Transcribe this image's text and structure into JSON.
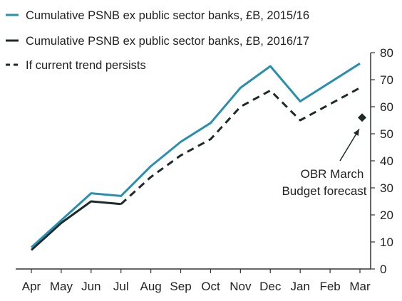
{
  "chart_data": {
    "type": "line",
    "categories": [
      "Apr",
      "May",
      "Jun",
      "Jul",
      "Aug",
      "Sep",
      "Oct",
      "Nov",
      "Dec",
      "Jan",
      "Feb",
      "Mar"
    ],
    "series": [
      {
        "name": "Cumulative PSNB ex public sector banks, £B, 2015/16",
        "style": "solid",
        "color": "#2a8eae",
        "values": [
          8,
          18,
          28,
          27,
          38,
          47,
          54,
          67,
          75,
          62,
          69,
          76
        ]
      },
      {
        "name": "Cumulative PSNB ex public sector banks, £B, 2016/17",
        "style": "solid",
        "color": "#1e2a2a",
        "values": [
          7,
          17,
          25,
          24,
          null,
          null,
          null,
          null,
          null,
          null,
          null,
          null
        ]
      },
      {
        "name": "If current trend persists",
        "style": "dashed",
        "color": "#1e2a2a",
        "values": [
          null,
          null,
          null,
          24,
          34,
          42,
          48,
          60,
          66,
          55,
          61,
          67
        ]
      }
    ],
    "yaxis": {
      "ticks": [
        "0",
        "10",
        "20",
        "30",
        "40",
        "50",
        "60",
        "70",
        "80"
      ],
      "ylim": [
        0,
        80
      ],
      "position": "right"
    },
    "xaxis": {
      "ticks": [
        "Apr",
        "May",
        "Jun",
        "Jul",
        "Aug",
        "Sep",
        "Oct",
        "Nov",
        "Dec",
        "Jan",
        "Feb",
        "Mar"
      ]
    },
    "grid": false,
    "legend_position": "top-left",
    "marker": {
      "category": "Mar",
      "value": 56,
      "shape": "diamond",
      "color": "#1e2a2a"
    },
    "annotation": {
      "lines": [
        "OBR March",
        "Budget forecast"
      ],
      "points_to": "marker"
    }
  }
}
